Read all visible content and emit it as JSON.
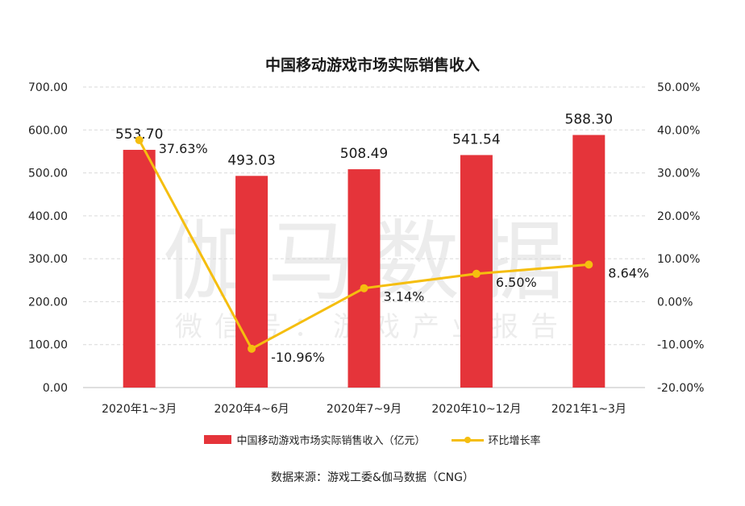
{
  "title": "中国移动游戏市场实际销售收入",
  "source": "数据来源：游戏工委&伽马数据（CNG）",
  "watermark": {
    "main": "伽马数据",
    "sub": "微信号：游戏产业报告"
  },
  "colors": {
    "bar": "#E5343A",
    "line": "#F5BE0F",
    "grid": "#d9d9d9",
    "axis": "#bfbfbf"
  },
  "legend": {
    "bar_label": "中国移动游戏市场实际销售收入（亿元）",
    "line_label": "环比增长率"
  },
  "chart_data": {
    "type": "bar",
    "categories": [
      "2020年1~3月",
      "2020年4~6月",
      "2020年7~9月",
      "2020年10~12月",
      "2021年1~3月"
    ],
    "series": [
      {
        "name": "中国移动游戏市场实际销售收入（亿元）",
        "type": "bar",
        "axis": "left",
        "values": [
          553.7,
          493.03,
          508.49,
          541.54,
          588.3
        ],
        "labels": [
          "553.70",
          "493.03",
          "508.49",
          "541.54",
          "588.30"
        ]
      },
      {
        "name": "环比增长率",
        "type": "line",
        "axis": "right",
        "values": [
          37.63,
          -10.96,
          3.14,
          6.5,
          8.64
        ],
        "labels": [
          "37.63%",
          "-10.96%",
          "3.14%",
          "6.50%",
          "8.64%"
        ]
      }
    ],
    "y_left": {
      "min": 0,
      "max": 700,
      "ticks": [
        "0.00",
        "100.00",
        "200.00",
        "300.00",
        "400.00",
        "500.00",
        "600.00",
        "700.00"
      ]
    },
    "y_right": {
      "min": -20,
      "max": 50,
      "ticks": [
        "-20.00%",
        "-10.00%",
        "0.00%",
        "10.00%",
        "20.00%",
        "30.00%",
        "40.00%",
        "50.00%"
      ]
    },
    "grid": true,
    "legend_position": "bottom"
  }
}
